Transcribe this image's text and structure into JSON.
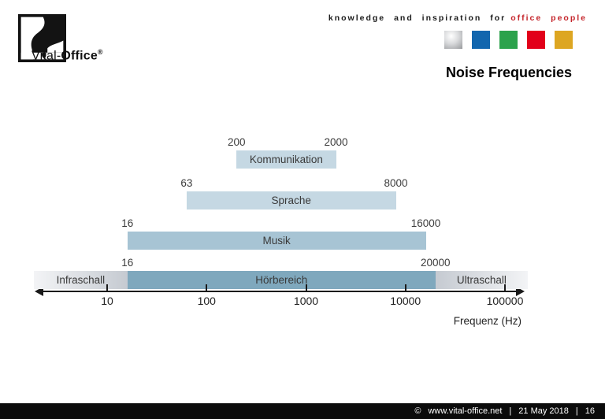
{
  "header": {
    "logo": {
      "brand_light": "Vital-",
      "brand_bold": "Office",
      "registered": "®"
    },
    "tagline": {
      "prefix": "knowledge and inspiration for",
      "highlight": "office people",
      "highlight_color": "#c5252b"
    },
    "palette_squares": [
      {
        "name": "silver",
        "color": "#b0b2b5",
        "gradient": true
      },
      {
        "name": "blue",
        "color": "#1266ae",
        "gradient": false
      },
      {
        "name": "green",
        "color": "#2ca24c",
        "gradient": false
      },
      {
        "name": "red",
        "color": "#e2001a",
        "gradient": false
      },
      {
        "name": "gold",
        "color": "#dda622",
        "gradient": false
      }
    ],
    "title": "Noise Frequencies"
  },
  "chart_data": {
    "type": "bar",
    "subtype": "horizontal-log-frequency-ranges",
    "title": "Noise Frequencies",
    "xlabel": "Frequenz (Hz)",
    "x_scale": "log",
    "axis_range": [
      10,
      100000
    ],
    "x_ticks": [
      "10",
      "100",
      "1000",
      "10000",
      "100000"
    ],
    "bars": [
      {
        "label": "Kommunikation",
        "from_hz": 200,
        "to_hz": 2000,
        "from_label": "200",
        "to_label": "2000",
        "color": "#c5d8e3"
      },
      {
        "label": "Sprache",
        "from_hz": 63,
        "to_hz": 8000,
        "from_label": "63",
        "to_label": "8000",
        "color": "#c5d8e3"
      },
      {
        "label": "Musik",
        "from_hz": 16,
        "to_hz": 16000,
        "from_label": "16",
        "to_label": "16000",
        "color": "#a7c4d4"
      },
      {
        "label": "Hörbereich",
        "from_hz": 16,
        "to_hz": 20000,
        "from_label": "16",
        "to_label": "20000",
        "color": "#7fa8bd"
      }
    ],
    "side_zones": [
      {
        "label": "Infraschall",
        "side": "left"
      },
      {
        "label": "Ultraschall",
        "side": "right"
      }
    ]
  },
  "footer": {
    "copyright_symbol": "©",
    "site": "www.vital-office.net",
    "separator": "|",
    "date": "21 May 2018",
    "page": "16"
  }
}
